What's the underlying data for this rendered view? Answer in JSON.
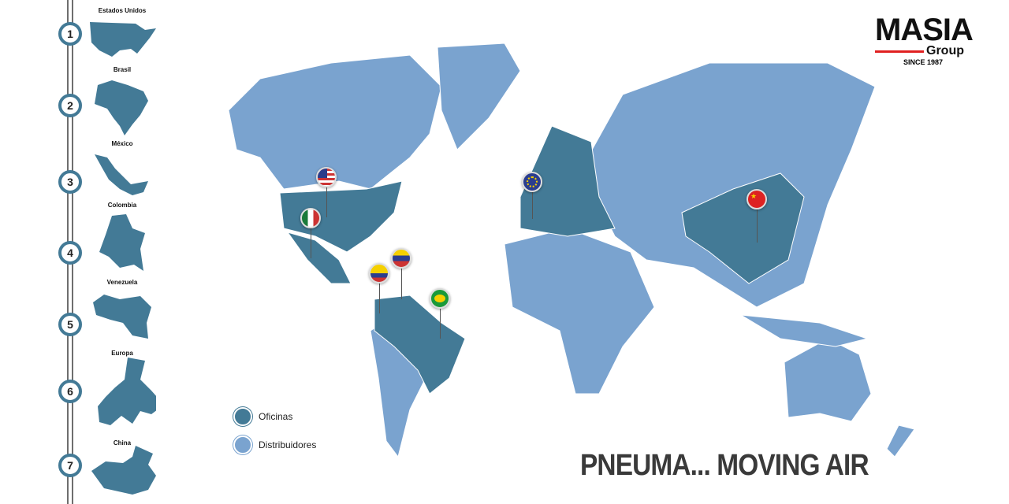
{
  "steps": [
    {
      "num": "1",
      "country": "Estados Unidos"
    },
    {
      "num": "2",
      "country": "Brasil"
    },
    {
      "num": "3",
      "country": "México"
    },
    {
      "num": "4",
      "country": "Colombia"
    },
    {
      "num": "5",
      "country": "Venezuela"
    },
    {
      "num": "6",
      "country": "Europa"
    },
    {
      "num": "7",
      "country": "China"
    }
  ],
  "logo": {
    "name": "MASIA",
    "group": "Group",
    "since": "SINCE 1987"
  },
  "legend": {
    "offices": "Oficinas",
    "distributors": "Distribuidores"
  },
  "slogan": "PNEUMA... MOVING AIR",
  "colors": {
    "offices": "#437a96",
    "distributors": "#7aa3cf",
    "accent": "#e02020"
  },
  "pins": [
    "usa-flag",
    "mexico-flag",
    "colombia-flag",
    "venezuela-flag",
    "brazil-flag",
    "eu-flag",
    "china-flag"
  ]
}
